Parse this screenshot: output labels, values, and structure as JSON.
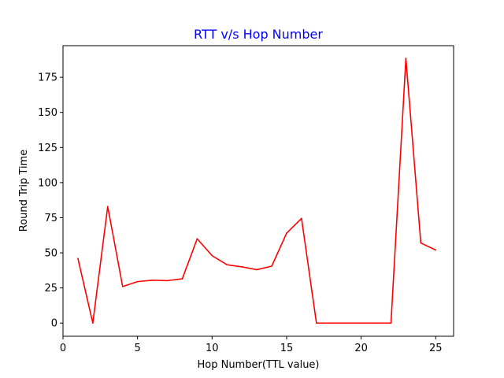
{
  "chart_data": {
    "type": "line",
    "title": "RTT v/s Hop Number",
    "title_color": "#0000ff",
    "xlabel": "Hop Number(TTL value)",
    "ylabel": "Round Trip Time",
    "xlim": [
      0,
      26.2
    ],
    "ylim": [
      -9.4,
      197.5
    ],
    "xticks": [
      0,
      5,
      10,
      15,
      20,
      25
    ],
    "yticks": [
      0,
      25,
      50,
      75,
      100,
      125,
      150,
      175
    ],
    "grid": false,
    "series": [
      {
        "color": "#ff0000",
        "x": [
          1,
          2,
          3,
          4,
          5,
          6,
          7,
          8,
          9,
          10,
          11,
          12,
          13,
          14,
          15,
          16,
          17,
          18,
          19,
          20,
          21,
          22,
          23,
          24,
          25
        ],
        "y": [
          46,
          0,
          83,
          26,
          29.5,
          30.5,
          30.2,
          31.5,
          60,
          48,
          41.5,
          40,
          38,
          40.5,
          64,
          74.5,
          0,
          0,
          0,
          0,
          0,
          0,
          188.5,
          57,
          52
        ]
      }
    ]
  }
}
